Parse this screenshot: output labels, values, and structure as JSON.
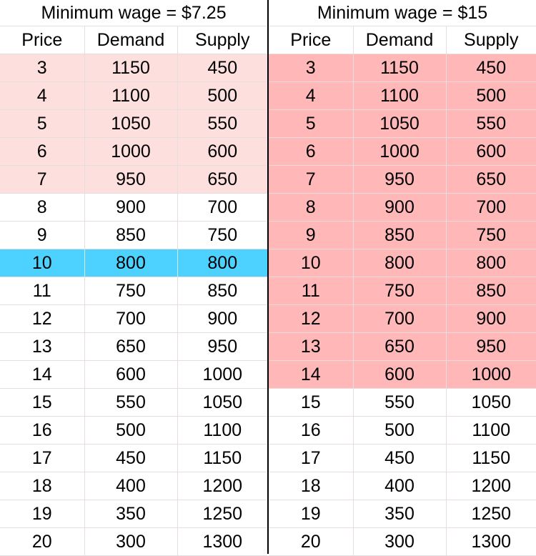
{
  "tables": [
    {
      "title": "Minimum wage = $7.25",
      "headers": [
        "Price",
        "Demand",
        "Supply"
      ],
      "rows": [
        [
          "3",
          "1150",
          "450"
        ],
        [
          "4",
          "1100",
          "500"
        ],
        [
          "5",
          "1050",
          "550"
        ],
        [
          "6",
          "1000",
          "600"
        ],
        [
          "7",
          "950",
          "650"
        ],
        [
          "8",
          "900",
          "700"
        ],
        [
          "9",
          "850",
          "750"
        ],
        [
          "10",
          "800",
          "800"
        ],
        [
          "11",
          "750",
          "850"
        ],
        [
          "12",
          "700",
          "900"
        ],
        [
          "13",
          "650",
          "950"
        ],
        [
          "14",
          "600",
          "1000"
        ],
        [
          "15",
          "550",
          "1050"
        ],
        [
          "16",
          "500",
          "1100"
        ],
        [
          "17",
          "450",
          "1150"
        ],
        [
          "18",
          "400",
          "1200"
        ],
        [
          "19",
          "350",
          "1250"
        ],
        [
          "20",
          "300",
          "1300"
        ]
      ],
      "highlights": [
        {
          "from_price": "3",
          "to_price": "7",
          "color": "#fde0de"
        },
        {
          "from_price": "10",
          "to_price": "10",
          "color": "#4dd2ff"
        }
      ]
    },
    {
      "title": "Minimum wage = $15",
      "headers": [
        "Price",
        "Demand",
        "Supply"
      ],
      "rows": [
        [
          "3",
          "1150",
          "450"
        ],
        [
          "4",
          "1100",
          "500"
        ],
        [
          "5",
          "1050",
          "550"
        ],
        [
          "6",
          "1000",
          "600"
        ],
        [
          "7",
          "950",
          "650"
        ],
        [
          "8",
          "900",
          "700"
        ],
        [
          "9",
          "850",
          "750"
        ],
        [
          "10",
          "800",
          "800"
        ],
        [
          "11",
          "750",
          "850"
        ],
        [
          "12",
          "700",
          "900"
        ],
        [
          "13",
          "650",
          "950"
        ],
        [
          "14",
          "600",
          "1000"
        ],
        [
          "15",
          "550",
          "1050"
        ],
        [
          "16",
          "500",
          "1100"
        ],
        [
          "17",
          "450",
          "1150"
        ],
        [
          "18",
          "400",
          "1200"
        ],
        [
          "19",
          "350",
          "1250"
        ],
        [
          "20",
          "300",
          "1300"
        ]
      ],
      "highlights": [
        {
          "from_price": "3",
          "to_price": "14",
          "color": "#ffb7b7"
        }
      ]
    }
  ]
}
